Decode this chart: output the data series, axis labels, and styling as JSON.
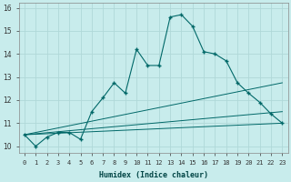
{
  "xlabel": "Humidex (Indice chaleur)",
  "background_color": "#c8ecec",
  "grid_color": "#b0d8d8",
  "line_color": "#006868",
  "xlim": [
    -0.5,
    23.5
  ],
  "ylim": [
    9.7,
    16.2
  ],
  "yticks": [
    10,
    11,
    12,
    13,
    14,
    15,
    16
  ],
  "xtick_labels": [
    "0",
    "1",
    "2",
    "3",
    "4",
    "5",
    "6",
    "7",
    "8",
    "9",
    "10",
    "11",
    "12",
    "13",
    "14",
    "15",
    "16",
    "17",
    "18",
    "19",
    "20",
    "21",
    "22",
    "23"
  ],
  "series_main_x": [
    0,
    1,
    2,
    3,
    4,
    5,
    6,
    7,
    8,
    9,
    10,
    11,
    12,
    13,
    14,
    15,
    16,
    17,
    18,
    19,
    20,
    21,
    22,
    23
  ],
  "series_main_y": [
    10.5,
    10.0,
    10.4,
    10.6,
    10.6,
    10.3,
    11.5,
    12.1,
    12.75,
    12.3,
    14.2,
    13.5,
    13.5,
    15.6,
    15.7,
    15.2,
    14.1,
    14.0,
    13.7,
    12.75,
    12.3,
    11.9,
    11.4,
    11.0
  ],
  "straight_lines": [
    {
      "x": [
        0,
        23
      ],
      "y": [
        10.5,
        11.0
      ]
    },
    {
      "x": [
        0,
        23
      ],
      "y": [
        10.5,
        11.5
      ]
    },
    {
      "x": [
        0,
        23
      ],
      "y": [
        10.5,
        12.75
      ]
    }
  ],
  "xlabel_fontsize": 6,
  "tick_fontsize": 5,
  "ytick_fontsize": 5.5
}
